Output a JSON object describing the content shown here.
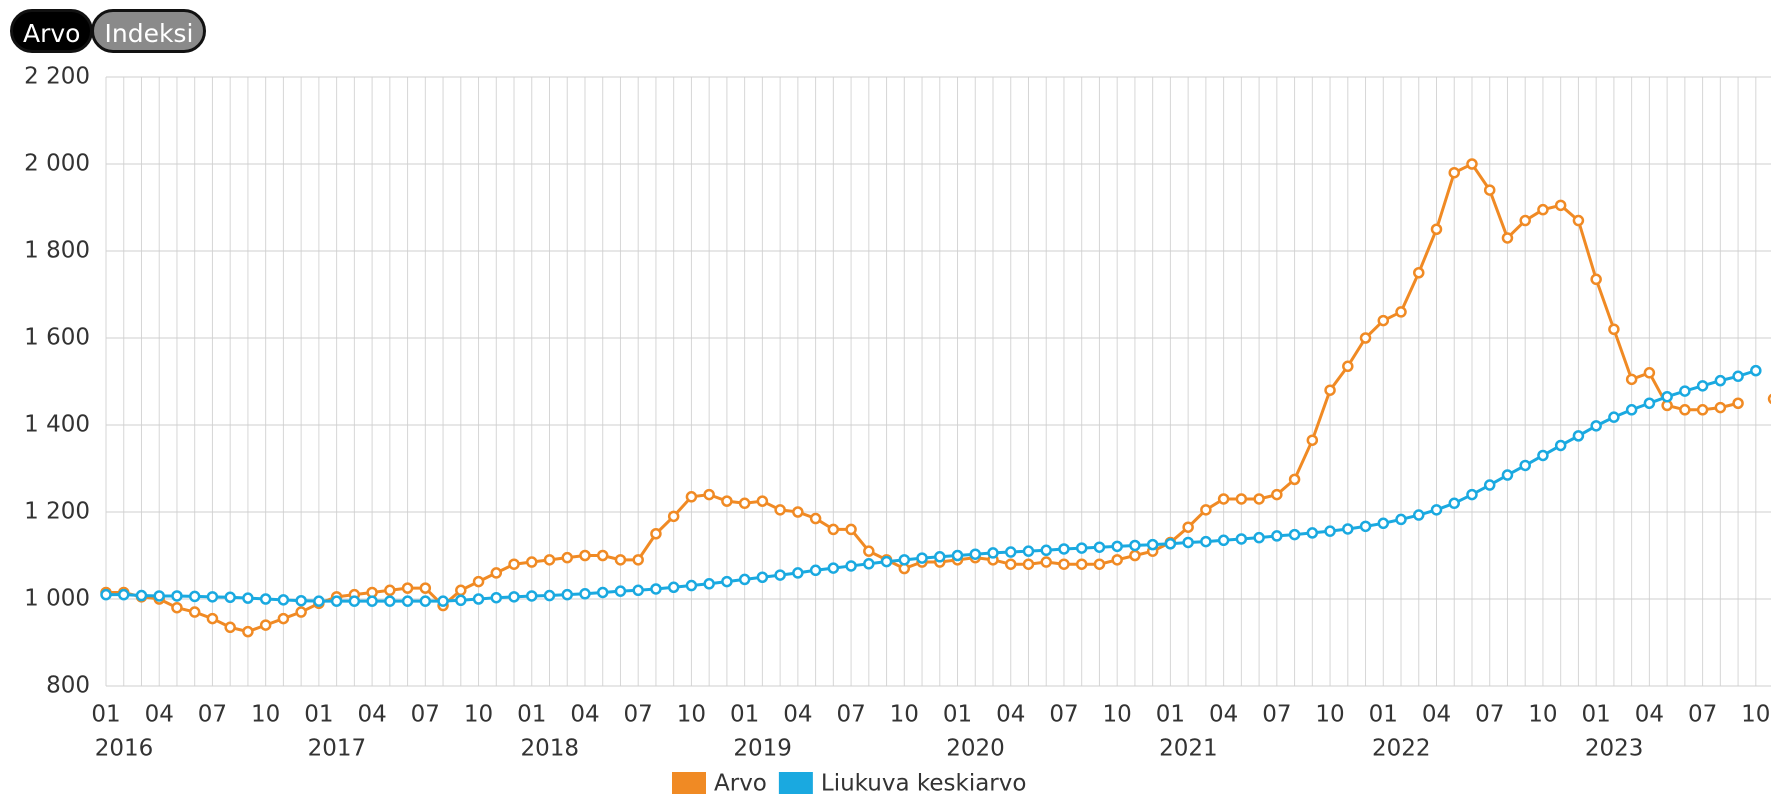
{
  "buttons": [
    "Arvo",
    "Indeksi"
  ],
  "chart_data": {
    "type": "line",
    "categories": [
      "01",
      null,
      null,
      "04",
      null,
      null,
      "07",
      null,
      null,
      "10",
      null,
      null,
      "01",
      null,
      null,
      "04",
      null,
      null,
      "07",
      null,
      null,
      "10",
      null,
      null,
      "01",
      null,
      null,
      "04",
      null,
      null,
      "07",
      null,
      null,
      "10",
      null,
      null,
      "01",
      null,
      null,
      "04",
      null,
      null,
      "07",
      null,
      null,
      "10",
      null,
      null,
      "01",
      null,
      null,
      "04",
      null,
      null,
      "07",
      null,
      null,
      "10",
      null,
      null,
      "01",
      null,
      null,
      "04",
      null,
      null,
      "07",
      null,
      null,
      "10",
      null,
      null,
      "01",
      null,
      null,
      "04",
      null,
      null,
      "07",
      null,
      null,
      "10",
      null,
      null,
      "01",
      null,
      null,
      "04",
      null,
      null,
      "07",
      null,
      null,
      "10",
      null
    ],
    "years": [
      "2016",
      "2017",
      "2018",
      "2019",
      "2020",
      "2021",
      "2022",
      "2023"
    ],
    "series": [
      {
        "name": "Arvo",
        "color": "#f08a24",
        "values": [
          1015,
          1015,
          1005,
          1000,
          980,
          970,
          955,
          935,
          925,
          940,
          955,
          970,
          990,
          1005,
          1010,
          1015,
          1020,
          1025,
          1025,
          985,
          1020,
          1040,
          1060,
          1080,
          1085,
          1090,
          1095,
          1100,
          1100,
          1090,
          1090,
          1150,
          1190,
          1235,
          1240,
          1225,
          1220,
          1225,
          1205,
          1200,
          1185,
          1160,
          1160,
          1110,
          1090,
          1070,
          1085,
          1085,
          1090,
          1095,
          1090,
          1080,
          1080,
          1085,
          1080,
          1080,
          1080,
          1090,
          1100,
          1110,
          1130,
          1165,
          1205,
          1230,
          1230,
          1230,
          1240,
          1275,
          1365,
          1480,
          1535,
          1600,
          1640,
          1660,
          1750,
          1850,
          1980,
          2000,
          1940,
          1830,
          1870,
          1895,
          1905,
          1870,
          1735,
          1620,
          1505,
          1520,
          1445,
          1435,
          1435,
          1440,
          1450,
          null,
          1460
        ]
      },
      {
        "name": "Liukuva keskiarvo",
        "color": "#1aa9e0",
        "values": [
          1010,
          1010,
          1008,
          1007,
          1007,
          1006,
          1005,
          1004,
          1002,
          1000,
          998,
          996,
          995,
          995,
          995,
          995,
          995,
          995,
          995,
          995,
          997,
          1000,
          1003,
          1005,
          1007,
          1008,
          1010,
          1012,
          1015,
          1018,
          1020,
          1023,
          1027,
          1031,
          1035,
          1040,
          1045,
          1050,
          1055,
          1060,
          1066,
          1071,
          1076,
          1081,
          1086,
          1090,
          1094,
          1097,
          1100,
          1103,
          1106,
          1108,
          1110,
          1112,
          1115,
          1117,
          1119,
          1121,
          1123,
          1125,
          1127,
          1130,
          1132,
          1135,
          1138,
          1141,
          1145,
          1148,
          1152,
          1156,
          1161,
          1167,
          1174,
          1183,
          1193,
          1205,
          1220,
          1240,
          1262,
          1285,
          1307,
          1330,
          1353,
          1375,
          1398,
          1418,
          1435,
          1450,
          1465,
          1478,
          1490,
          1502,
          1512,
          1525,
          null
        ]
      }
    ],
    "ylim": [
      800,
      2200
    ],
    "yticks": [
      800,
      {
        "value": 1000,
        "label": "1 000"
      },
      {
        "value": 1200,
        "label": "1 200"
      },
      {
        "value": 1400,
        "label": "1 400"
      },
      {
        "value": 1600,
        "label": "1 600"
      },
      {
        "value": 1800,
        "label": "1 800"
      },
      {
        "value": 2000,
        "label": "2 000"
      },
      {
        "value": 2200,
        "label": "2 200"
      }
    ],
    "grid": true,
    "legend": "bottom"
  }
}
